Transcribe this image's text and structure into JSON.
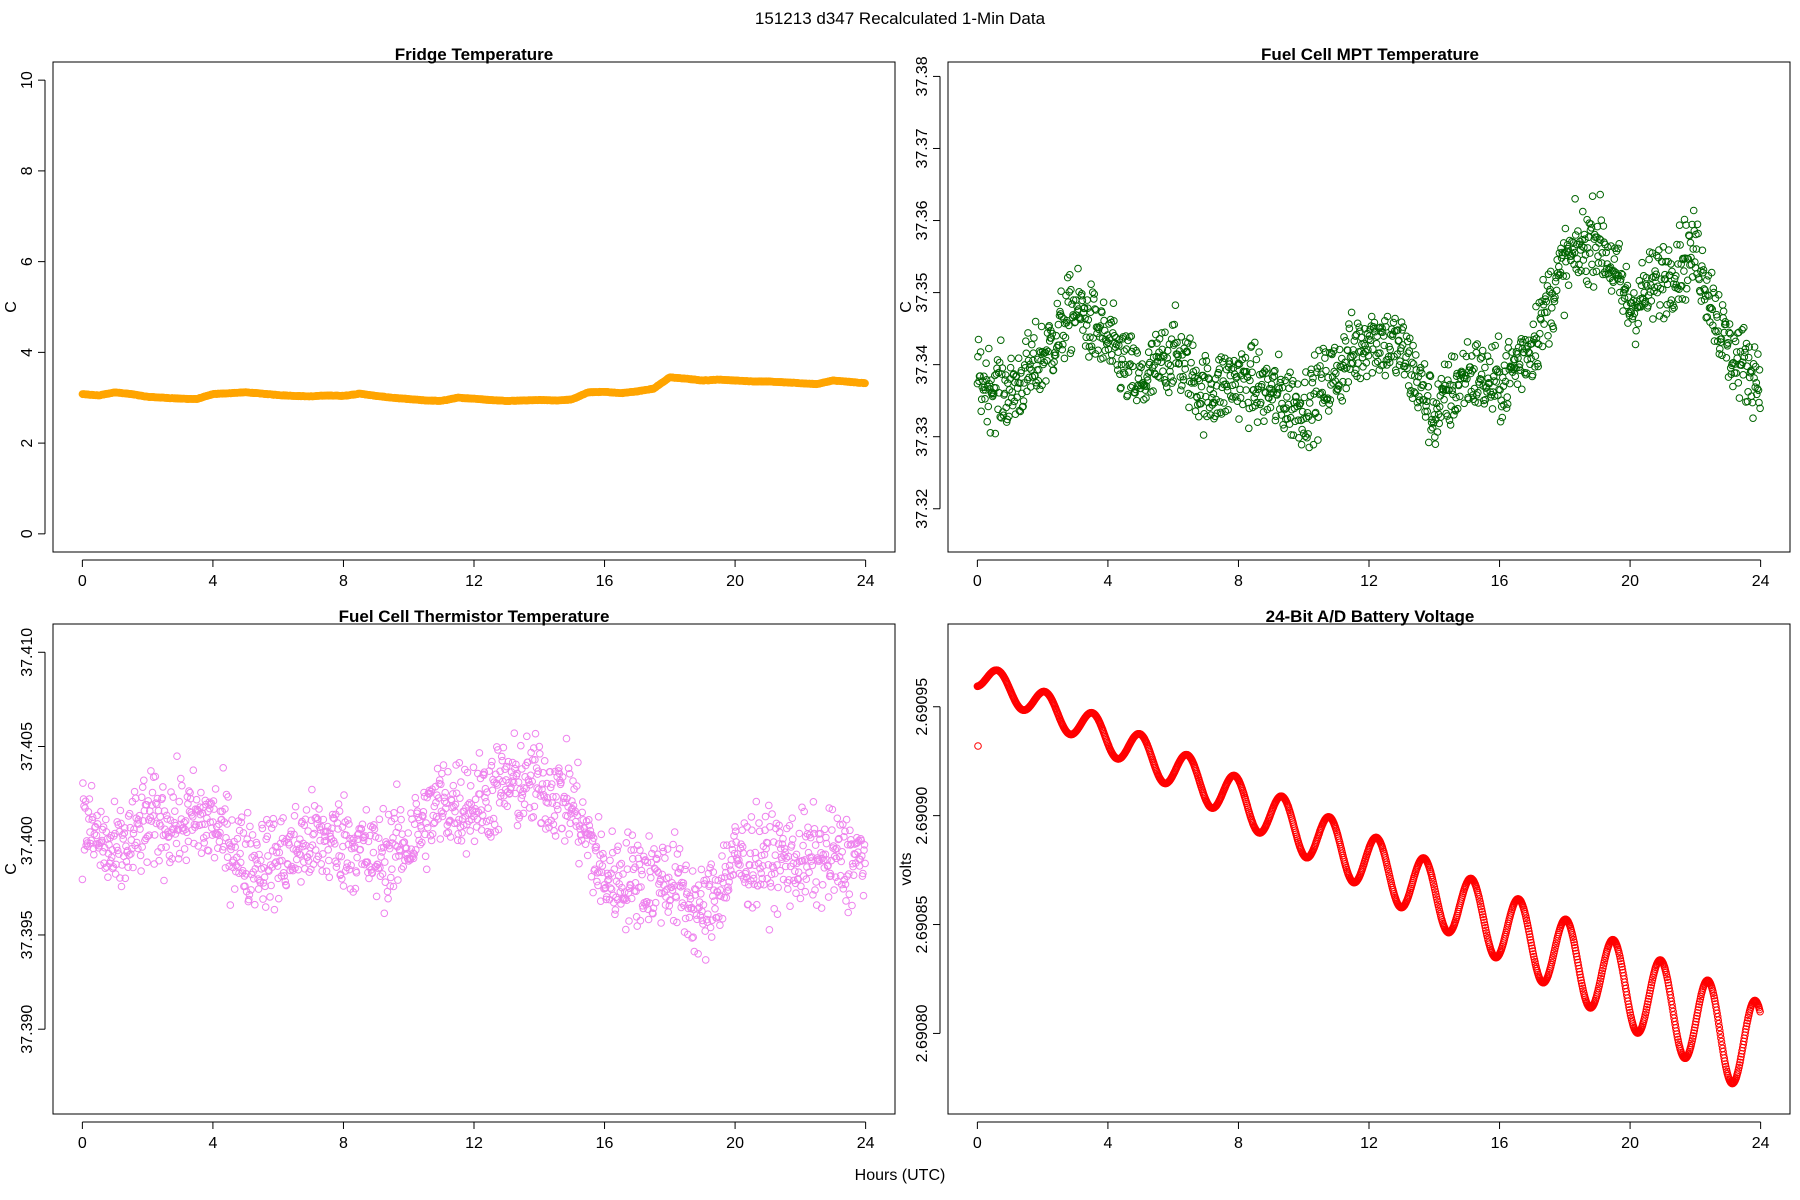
{
  "figure": {
    "title": "151213   d347   Recalculated 1-Min Data",
    "xlabel": "Hours (UTC)"
  },
  "chart_data": [
    {
      "type": "scatter",
      "title": "Fridge Temperature",
      "xlabel": "Hours (UTC)",
      "ylabel": "C",
      "color": "#FFA500",
      "xlim": [
        -0.9,
        24.9
      ],
      "ylim": [
        -0.4,
        10.4
      ],
      "xticks": [
        0,
        4,
        8,
        12,
        16,
        20,
        24
      ],
      "yticks": [
        0,
        2,
        4,
        6,
        8,
        10
      ],
      "ytick_labels": [
        "0",
        "2",
        "4",
        "6",
        "8",
        "10"
      ],
      "series": [
        {
          "name": "Fridge Temperature",
          "x": [
            0,
            0.5,
            1,
            1.5,
            2,
            2.5,
            3,
            3.5,
            4,
            4.5,
            5,
            5.5,
            6,
            6.5,
            7,
            7.5,
            8,
            8.5,
            9,
            9.5,
            10,
            10.5,
            11,
            11.5,
            12,
            12.5,
            13,
            13.5,
            14,
            14.5,
            15,
            15.5,
            16,
            16.5,
            17,
            17.5,
            18,
            18.5,
            19,
            19.5,
            20,
            20.5,
            21,
            21.5,
            22,
            22.5,
            23,
            23.5,
            24
          ],
          "values": [
            3.08,
            3.05,
            3.12,
            3.08,
            3.02,
            3.0,
            2.98,
            2.97,
            3.08,
            3.1,
            3.12,
            3.09,
            3.06,
            3.04,
            3.03,
            3.05,
            3.04,
            3.09,
            3.04,
            3.0,
            2.97,
            2.94,
            2.93,
            3.0,
            2.98,
            2.95,
            2.93,
            2.94,
            2.95,
            2.94,
            2.96,
            3.12,
            3.13,
            3.1,
            3.14,
            3.2,
            3.45,
            3.42,
            3.38,
            3.4,
            3.38,
            3.36,
            3.36,
            3.34,
            3.32,
            3.3,
            3.38,
            3.35,
            3.32
          ]
        }
      ]
    },
    {
      "type": "scatter",
      "title": "Fuel Cell MPT Temperature",
      "xlabel": "Hours (UTC)",
      "ylabel": "C",
      "color": "#006400",
      "xlim": [
        -0.9,
        24.9
      ],
      "ylim": [
        37.314,
        37.382
      ],
      "xticks": [
        0,
        4,
        8,
        12,
        16,
        20,
        24
      ],
      "yticks": [
        37.32,
        37.33,
        37.34,
        37.35,
        37.36,
        37.37,
        37.38
      ],
      "ytick_labels": [
        "37.32",
        "37.33",
        "37.34",
        "37.35",
        "37.36",
        "37.37",
        "37.38"
      ],
      "trend": {
        "x": [
          0,
          1,
          2,
          3,
          4,
          5,
          6,
          7,
          8,
          9,
          10,
          11,
          12,
          13,
          14,
          15,
          16,
          17,
          18,
          19,
          20,
          21,
          22,
          23,
          24
        ],
        "values": [
          37.338,
          37.336,
          37.341,
          37.348,
          37.343,
          37.337,
          37.342,
          37.336,
          37.338,
          37.336,
          37.334,
          37.339,
          37.344,
          37.342,
          37.333,
          37.339,
          37.337,
          37.343,
          37.354,
          37.358,
          37.348,
          37.352,
          37.356,
          37.342,
          37.338
        ]
      },
      "spread": 0.0075,
      "point_count": 1440
    },
    {
      "type": "scatter",
      "title": "Fuel Cell Thermistor Temperature",
      "xlabel": "Hours (UTC)",
      "ylabel": "C",
      "color": "#EE82EE",
      "xlim": [
        -0.9,
        24.9
      ],
      "ylim": [
        37.3855,
        37.4115
      ],
      "xticks": [
        0,
        4,
        8,
        12,
        16,
        20,
        24
      ],
      "yticks": [
        37.39,
        37.395,
        37.4,
        37.405,
        37.41
      ],
      "ytick_labels": [
        "37.390",
        "37.395",
        "37.400",
        "37.405",
        "37.410"
      ],
      "trend": {
        "x": [
          0,
          1,
          2,
          3,
          4,
          5,
          6,
          7,
          8,
          9,
          10,
          11,
          12,
          13,
          14,
          15,
          16,
          17,
          18,
          19,
          20,
          21,
          22,
          23,
          24
        ],
        "values": [
          37.401,
          37.399,
          37.401,
          37.401,
          37.401,
          37.399,
          37.399,
          37.4,
          37.4,
          37.399,
          37.4,
          37.402,
          37.402,
          37.403,
          37.403,
          37.402,
          37.398,
          37.398,
          37.398,
          37.396,
          37.399,
          37.399,
          37.399,
          37.399,
          37.399
        ]
      },
      "spread": 0.0035,
      "point_count": 1440
    },
    {
      "type": "scatter",
      "title": "24-Bit A/D Battery Voltage",
      "xlabel": "Hours (UTC)",
      "ylabel": "volts",
      "color": "#FF0000",
      "xlim": [
        -0.9,
        24.9
      ],
      "ylim": [
        2.690763,
        2.690988
      ],
      "xticks": [
        0,
        4,
        8,
        12,
        16,
        20,
        24
      ],
      "yticks": [
        2.6908,
        2.69085,
        2.6909,
        2.69095
      ],
      "ytick_labels": [
        "2.69080",
        "2.69085",
        "2.69090",
        "2.69095"
      ],
      "outlier": {
        "x": 0.02,
        "y": 2.690932
      },
      "baseline": {
        "start": 2.690965,
        "end": 2.690792
      },
      "oscillation_amplitude": [
        6e-06,
        2.2e-05
      ],
      "oscillation_period_hours": 1.45,
      "point_count": 1440
    }
  ]
}
